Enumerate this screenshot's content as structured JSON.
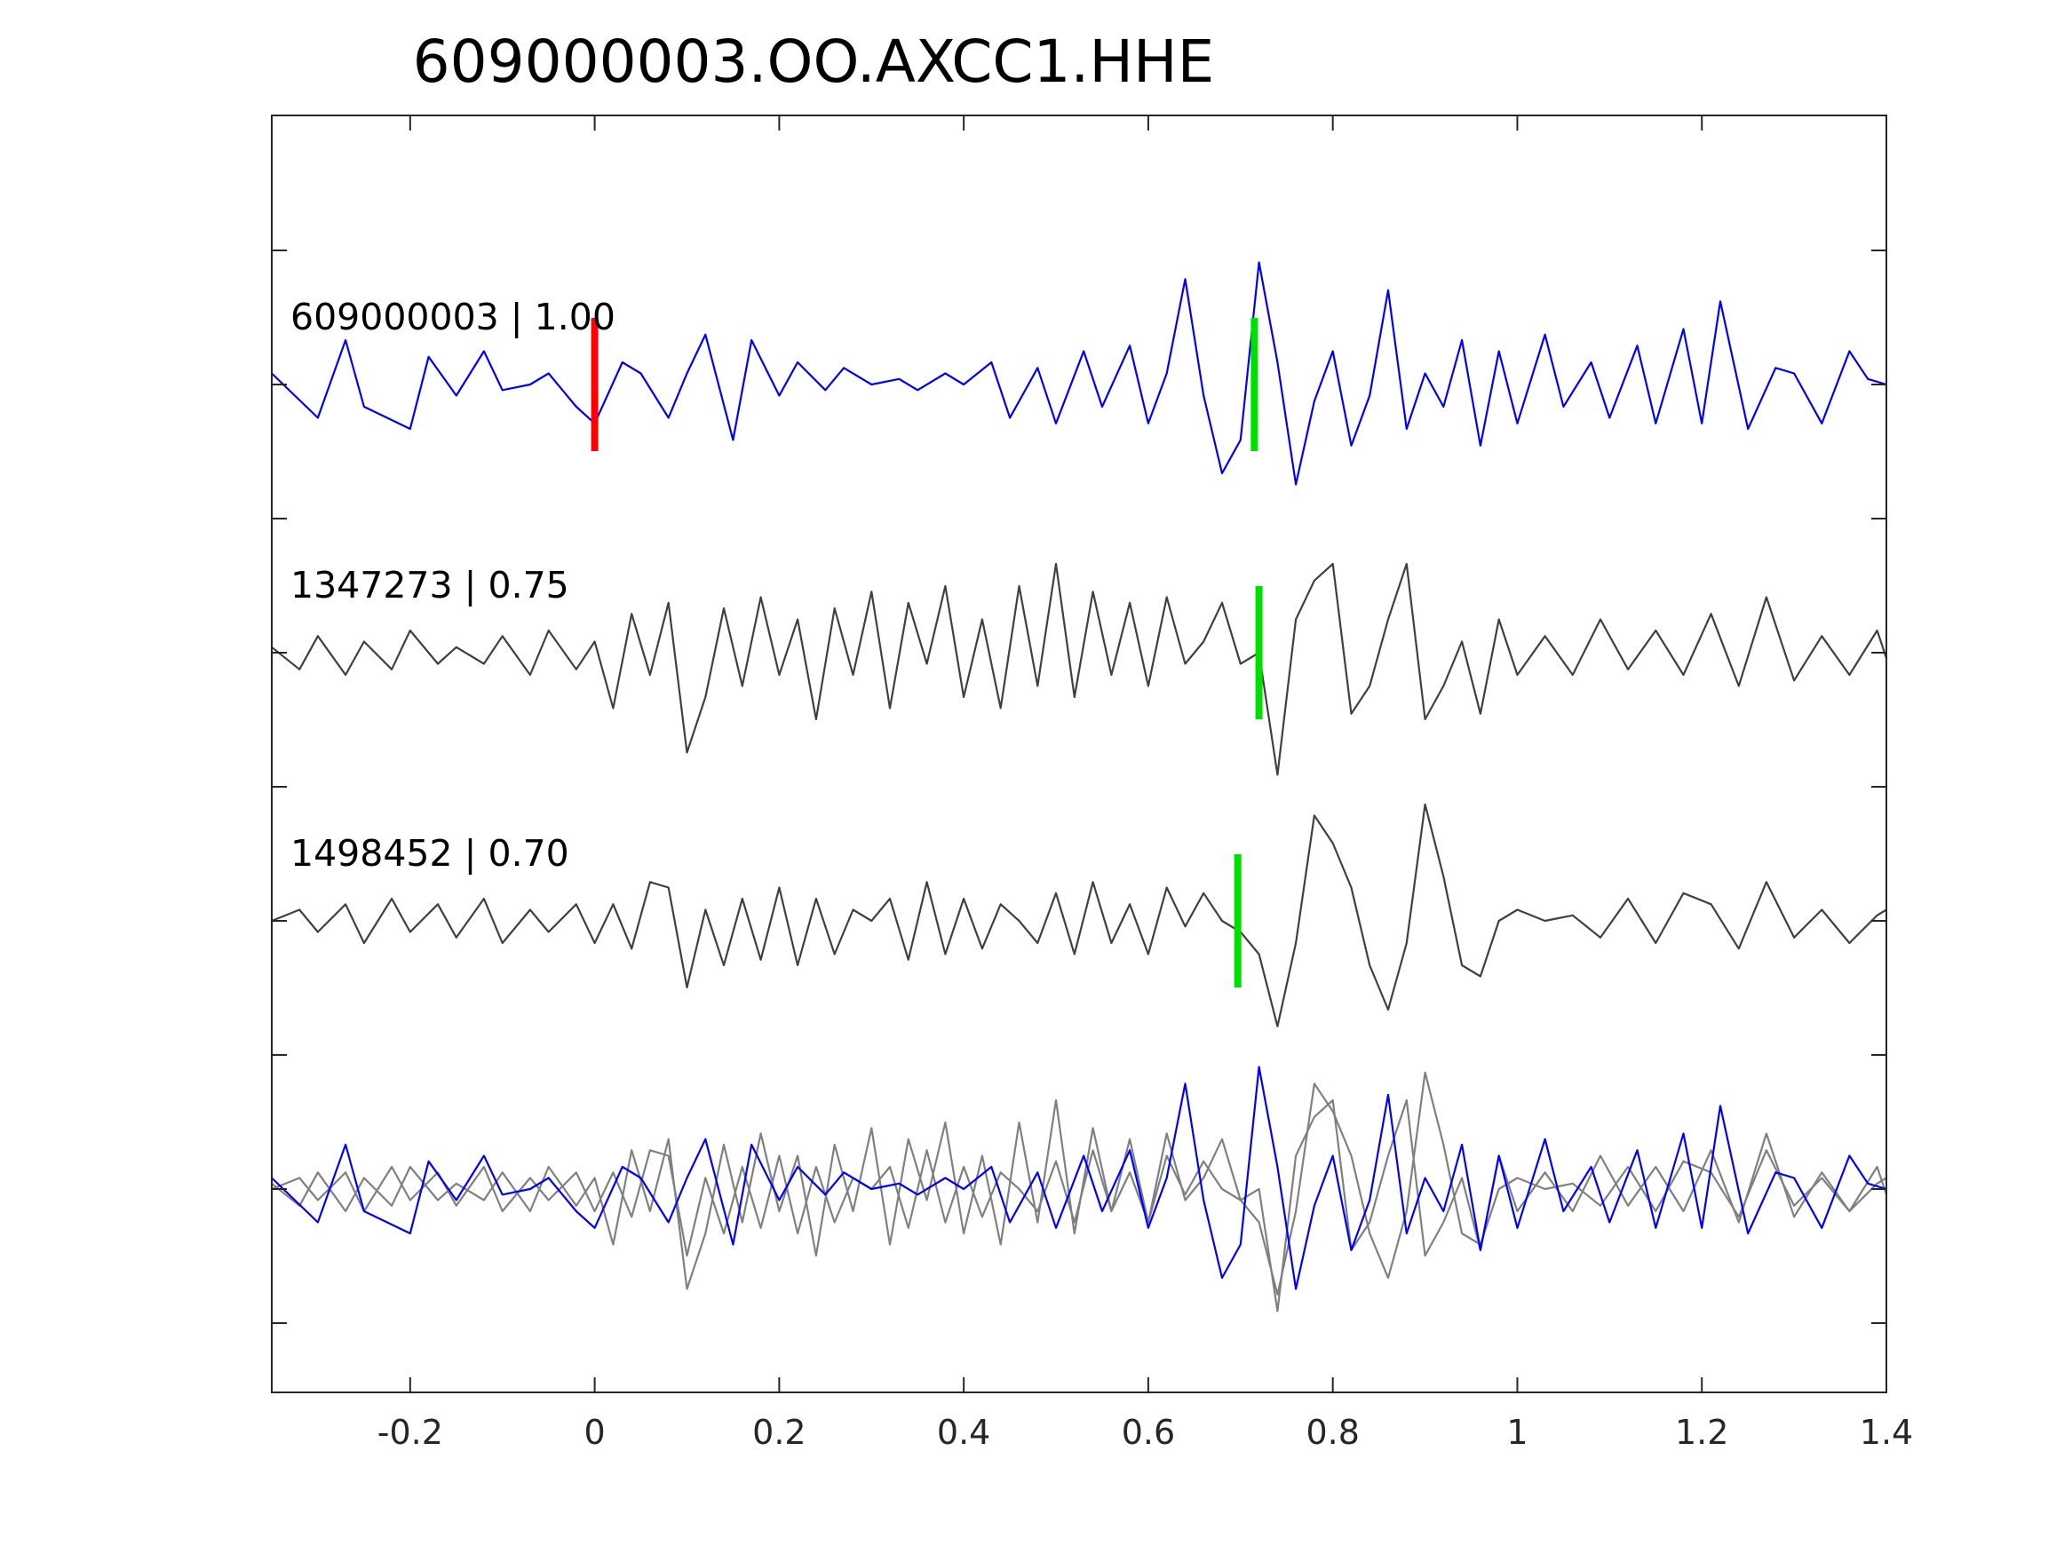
{
  "chart_data": {
    "type": "line",
    "title": "609000003.OO.AXCC1.HHE",
    "xlabel": "",
    "ylabel": "",
    "xlim": [
      -0.35,
      1.4
    ],
    "xticks": [
      -0.2,
      0,
      0.2,
      0.4,
      0.6,
      0.8,
      1,
      1.2,
      1.4
    ],
    "xtick_labels": [
      "-0.2",
      "0",
      "0.2",
      "0.4",
      "0.6",
      "0.8",
      "1",
      "1.2",
      "1.4"
    ],
    "y_tick_count": 9,
    "grid": false,
    "colors": {
      "template": "#0000ff",
      "neighbor": "#404040",
      "overlay_neighbor": "#808080",
      "p_pick": "#ff0000",
      "s_pick": "#00e000",
      "axis": "#262626"
    },
    "series": [
      {
        "name": "609000003 | 1.00",
        "color": "#0000ff",
        "p_pick": 0.0,
        "s_pick": 0.715,
        "t": [
          -0.35,
          -0.3,
          -0.27,
          -0.25,
          -0.2,
          -0.18,
          -0.15,
          -0.12,
          -0.1,
          -0.07,
          -0.05,
          -0.02,
          0.0,
          0.03,
          0.05,
          0.08,
          0.1,
          0.12,
          0.15,
          0.17,
          0.2,
          0.22,
          0.25,
          0.27,
          0.3,
          0.33,
          0.35,
          0.38,
          0.4,
          0.43,
          0.45,
          0.48,
          0.5,
          0.53,
          0.55,
          0.58,
          0.6,
          0.62,
          0.64,
          0.66,
          0.68,
          0.7,
          0.72,
          0.74,
          0.76,
          0.78,
          0.8,
          0.82,
          0.84,
          0.86,
          0.88,
          0.9,
          0.92,
          0.94,
          0.96,
          0.98,
          1.0,
          1.03,
          1.05,
          1.08,
          1.1,
          1.13,
          1.15,
          1.18,
          1.2,
          1.22,
          1.25,
          1.28,
          1.3,
          1.33,
          1.36,
          1.38,
          1.4
        ],
        "values": [
          0.1,
          -0.3,
          0.4,
          -0.2,
          -0.4,
          0.25,
          -0.1,
          0.3,
          -0.05,
          0.0,
          0.1,
          -0.2,
          -0.35,
          0.2,
          0.1,
          -0.3,
          0.1,
          0.45,
          -0.5,
          0.4,
          -0.1,
          0.2,
          -0.05,
          0.15,
          0.0,
          0.05,
          -0.05,
          0.1,
          0.0,
          0.2,
          -0.3,
          0.15,
          -0.35,
          0.3,
          -0.2,
          0.35,
          -0.35,
          0.1,
          0.95,
          -0.1,
          -0.8,
          -0.5,
          1.1,
          0.2,
          -0.9,
          -0.15,
          0.3,
          -0.55,
          -0.1,
          0.85,
          -0.4,
          0.1,
          -0.2,
          0.4,
          -0.55,
          0.3,
          -0.35,
          0.45,
          -0.2,
          0.2,
          -0.3,
          0.35,
          -0.35,
          0.5,
          -0.35,
          0.75,
          -0.4,
          0.15,
          0.1,
          -0.35,
          0.3,
          0.05,
          0.0
        ]
      },
      {
        "name": "1347273 | 0.75",
        "color": "#404040",
        "s_pick": 0.72,
        "t": [
          -0.35,
          -0.32,
          -0.3,
          -0.27,
          -0.25,
          -0.22,
          -0.2,
          -0.17,
          -0.15,
          -0.12,
          -0.1,
          -0.07,
          -0.05,
          -0.02,
          0.0,
          0.02,
          0.04,
          0.06,
          0.08,
          0.1,
          0.12,
          0.14,
          0.16,
          0.18,
          0.2,
          0.22,
          0.24,
          0.26,
          0.28,
          0.3,
          0.32,
          0.34,
          0.36,
          0.38,
          0.4,
          0.42,
          0.44,
          0.46,
          0.48,
          0.5,
          0.52,
          0.54,
          0.56,
          0.58,
          0.6,
          0.62,
          0.64,
          0.66,
          0.68,
          0.7,
          0.72,
          0.74,
          0.76,
          0.78,
          0.8,
          0.82,
          0.84,
          0.86,
          0.88,
          0.9,
          0.92,
          0.94,
          0.96,
          0.98,
          1.0,
          1.03,
          1.06,
          1.09,
          1.12,
          1.15,
          1.18,
          1.21,
          1.24,
          1.27,
          1.3,
          1.33,
          1.36,
          1.39,
          1.4
        ],
        "values": [
          0.05,
          -0.15,
          0.15,
          -0.2,
          0.1,
          -0.15,
          0.2,
          -0.1,
          0.05,
          -0.1,
          0.15,
          -0.2,
          0.2,
          -0.15,
          0.1,
          -0.5,
          0.35,
          -0.2,
          0.45,
          -0.9,
          -0.4,
          0.4,
          -0.3,
          0.5,
          -0.2,
          0.3,
          -0.6,
          0.4,
          -0.2,
          0.55,
          -0.5,
          0.45,
          -0.1,
          0.6,
          -0.4,
          0.3,
          -0.5,
          0.6,
          -0.3,
          0.8,
          -0.4,
          0.55,
          -0.2,
          0.45,
          -0.3,
          0.5,
          -0.1,
          0.1,
          0.45,
          -0.1,
          0.0,
          -1.1,
          0.3,
          0.65,
          0.8,
          -0.55,
          -0.3,
          0.3,
          0.8,
          -0.6,
          -0.3,
          0.1,
          -0.55,
          0.3,
          -0.2,
          0.15,
          -0.2,
          0.3,
          -0.15,
          0.2,
          -0.2,
          0.35,
          -0.3,
          0.5,
          -0.25,
          0.15,
          -0.2,
          0.2,
          -0.05
        ]
      },
      {
        "name": "1498452 | 0.70",
        "color": "#404040",
        "s_pick": 0.697,
        "t": [
          -0.35,
          -0.32,
          -0.3,
          -0.27,
          -0.25,
          -0.22,
          -0.2,
          -0.17,
          -0.15,
          -0.12,
          -0.1,
          -0.07,
          -0.05,
          -0.02,
          0.0,
          0.02,
          0.04,
          0.06,
          0.08,
          0.1,
          0.12,
          0.14,
          0.16,
          0.18,
          0.2,
          0.22,
          0.24,
          0.26,
          0.28,
          0.3,
          0.32,
          0.34,
          0.36,
          0.38,
          0.4,
          0.42,
          0.44,
          0.46,
          0.48,
          0.5,
          0.52,
          0.54,
          0.56,
          0.58,
          0.6,
          0.62,
          0.64,
          0.66,
          0.68,
          0.7,
          0.72,
          0.74,
          0.76,
          0.78,
          0.8,
          0.82,
          0.84,
          0.86,
          0.88,
          0.9,
          0.92,
          0.94,
          0.96,
          0.98,
          1.0,
          1.03,
          1.06,
          1.09,
          1.12,
          1.15,
          1.18,
          1.21,
          1.24,
          1.27,
          1.3,
          1.33,
          1.36,
          1.39,
          1.4
        ],
        "values": [
          0.0,
          0.1,
          -0.1,
          0.15,
          -0.2,
          0.2,
          -0.1,
          0.15,
          -0.15,
          0.2,
          -0.2,
          0.1,
          -0.1,
          0.15,
          -0.2,
          0.15,
          -0.25,
          0.35,
          0.3,
          -0.6,
          0.1,
          -0.4,
          0.2,
          -0.35,
          0.3,
          -0.4,
          0.2,
          -0.3,
          0.1,
          0.0,
          0.2,
          -0.35,
          0.35,
          -0.3,
          0.2,
          -0.25,
          0.15,
          0.0,
          -0.2,
          0.25,
          -0.3,
          0.35,
          -0.2,
          0.15,
          -0.3,
          0.3,
          -0.05,
          0.25,
          0.0,
          -0.1,
          -0.3,
          -0.95,
          -0.2,
          0.95,
          0.7,
          0.3,
          -0.4,
          -0.8,
          -0.2,
          1.05,
          0.4,
          -0.4,
          -0.5,
          0.0,
          0.1,
          0.0,
          0.05,
          -0.15,
          0.2,
          -0.2,
          0.25,
          0.15,
          -0.25,
          0.35,
          -0.15,
          0.1,
          -0.2,
          0.05,
          0.1
        ]
      }
    ]
  }
}
